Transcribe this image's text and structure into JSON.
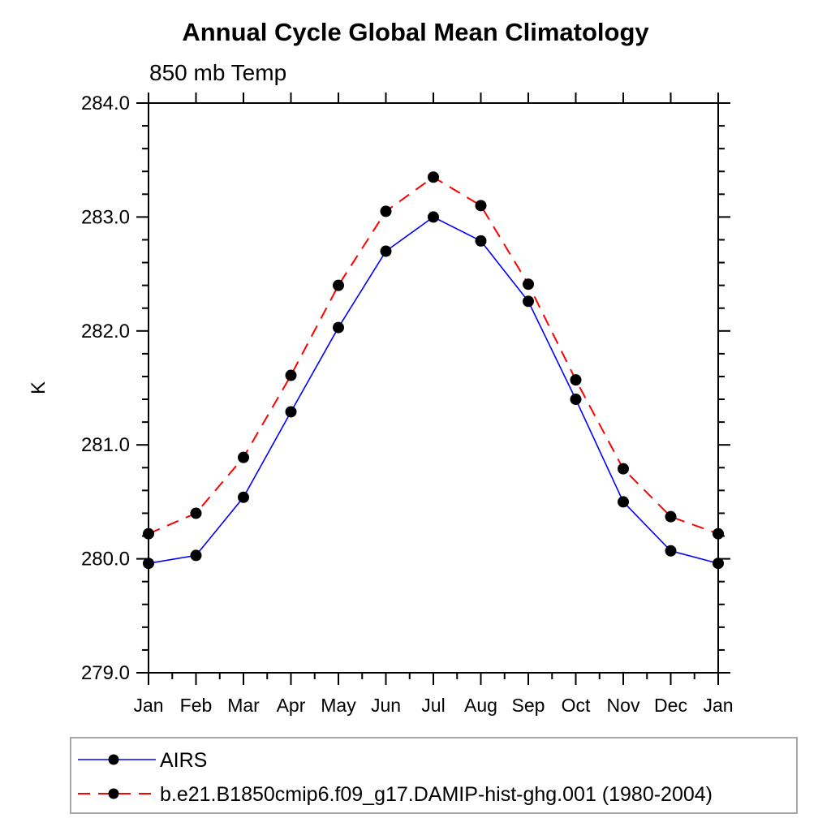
{
  "chart_data": {
    "type": "line",
    "title": "Annual Cycle Global Mean Climatology",
    "subtitle": "850 mb Temp",
    "ylabel": "K",
    "categories": [
      "Jan",
      "Feb",
      "Mar",
      "Apr",
      "May",
      "Jun",
      "Jul",
      "Aug",
      "Sep",
      "Oct",
      "Nov",
      "Dec",
      "Jan"
    ],
    "ylim": [
      279.0,
      284.0
    ],
    "ytick_interval": 1.0,
    "yminor_interval": 0.2,
    "ytick_labels": [
      "279.0",
      "280.0",
      "281.0",
      "282.0",
      "283.0",
      "284.0"
    ],
    "grid": false,
    "legend_position": "bottom-left",
    "marker": "filled-circle",
    "marker_color": "#000000",
    "axis_color": "#000000",
    "legend_border_color": "#a6a6a6",
    "series": [
      {
        "name": "AIRS",
        "color": "#0000ff",
        "line_style": "solid",
        "values": [
          279.96,
          280.03,
          280.54,
          281.29,
          282.03,
          282.7,
          283.0,
          282.79,
          282.26,
          281.4,
          280.5,
          280.07,
          279.96
        ]
      },
      {
        "name": "b.e21.B1850cmip6.f09_g17.DAMIP-hist-ghg.001 (1980-2004)",
        "color": "#ff0000",
        "line_style": "dashed",
        "values": [
          280.22,
          280.4,
          280.89,
          281.61,
          282.4,
          283.05,
          283.35,
          283.1,
          282.41,
          281.57,
          280.79,
          280.37,
          280.22
        ]
      }
    ]
  }
}
